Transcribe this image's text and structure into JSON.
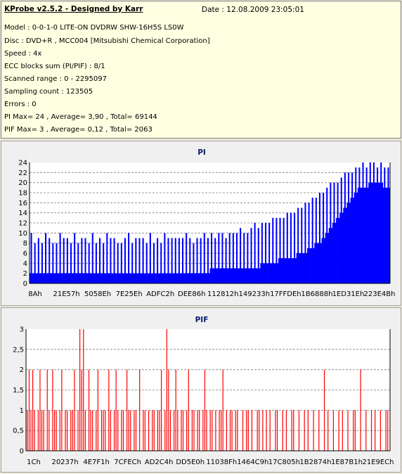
{
  "header": {
    "title": "KProbe v2.5.2 - Designed by Karr",
    "date": "Date : 12.08.2009 23:05:01",
    "lines": [
      "Model : 0-0-1-0 LITE-ON DVDRW SHW-16H5S  LS0W",
      "Disc : DVD+R , MCC004 [Mitsubishi Chemical Corporation]",
      "Speed : 4x",
      "ECC blocks sum (PI/PIF) : 8/1",
      "Scanned range : 0 - 2295097",
      "Sampling count : 123505",
      "Errors : 0",
      "PI Max= 24 , Average= 3,90 , Total= 69144",
      "PIF Max= 3 , Average= 0,12 , Total= 2063"
    ]
  },
  "colors": {
    "pi": "#0000ff",
    "pif": "#ff0000",
    "title": "#0a1a6e",
    "background": "#ffffe1"
  },
  "chart_data": [
    {
      "type": "bar",
      "title": "PI",
      "ylim": [
        0,
        24
      ],
      "yticks": [
        "0",
        "2",
        "4",
        "6",
        "8",
        "10",
        "12",
        "14",
        "16",
        "18",
        "20",
        "22",
        "24"
      ],
      "xticks": [
        "8Ah",
        "21E57h",
        "5058Eh",
        "7E25Eh",
        "ADFC2h",
        "DEE86h",
        "112812h",
        "149233h",
        "17FFDEh",
        "1B6888h",
        "1ED31Eh",
        "223E4Bh"
      ],
      "grid": true,
      "series": [
        {
          "color": "#0000ff",
          "base": [
            2,
            2,
            2,
            2,
            2,
            2,
            2,
            2,
            2,
            2,
            2,
            2,
            2,
            2,
            2,
            2,
            2,
            2,
            2,
            2,
            2,
            2,
            2,
            2,
            2,
            2,
            2,
            2,
            2,
            2,
            2,
            2,
            2,
            2,
            2,
            2,
            2,
            2,
            2,
            2,
            2,
            2,
            2,
            2,
            2,
            2,
            2,
            2,
            2,
            2,
            3,
            3,
            3,
            3,
            3,
            3,
            3,
            3,
            3,
            3,
            3,
            3,
            3,
            3,
            4,
            4,
            4,
            4,
            4,
            5,
            5,
            5,
            5,
            5,
            6,
            6,
            6,
            7,
            7,
            8,
            8,
            9,
            10,
            11,
            12,
            13,
            14,
            15,
            16,
            17,
            18,
            19,
            19,
            19,
            20,
            20,
            20,
            20,
            19,
            19
          ],
          "peaks": [
            10,
            8,
            9,
            8,
            10,
            9,
            8,
            8,
            10,
            9,
            9,
            8,
            10,
            8,
            9,
            9,
            8,
            10,
            8,
            9,
            8,
            10,
            9,
            9,
            8,
            8,
            9,
            10,
            8,
            9,
            9,
            9,
            8,
            10,
            8,
            9,
            8,
            10,
            9,
            9,
            9,
            9,
            9,
            10,
            9,
            8,
            9,
            9,
            10,
            9,
            10,
            9,
            10,
            10,
            9,
            10,
            10,
            10,
            11,
            10,
            10,
            11,
            12,
            11,
            12,
            12,
            12,
            13,
            13,
            13,
            13,
            14,
            14,
            14,
            15,
            15,
            16,
            16,
            17,
            17,
            18,
            18,
            19,
            20,
            20,
            20,
            21,
            22,
            22,
            22,
            23,
            23,
            24,
            23,
            24,
            24,
            23,
            24,
            23,
            23
          ]
        }
      ]
    },
    {
      "type": "bar",
      "title": "PIF",
      "ylim": [
        0,
        3
      ],
      "yticks": [
        "0",
        "0,5",
        "1",
        "1,5",
        "2",
        "2,5",
        "3"
      ],
      "xticks": [
        "1Ch",
        "20237h",
        "4E7F1h",
        "7CFECh",
        "AD2C4h",
        "DD5E0h",
        "11038Fh",
        "1464C9h",
        "17C805h",
        "1B2874h",
        "1E87B1h",
        "21E9ECh"
      ],
      "grid": true,
      "series": [
        {
          "color": "#ff0000",
          "values": [
            1,
            2,
            1,
            2,
            1,
            0,
            1,
            2,
            1,
            1,
            0,
            2,
            1,
            0,
            2,
            1,
            1,
            0,
            1,
            2,
            0,
            1,
            1,
            0,
            1,
            1,
            2,
            0,
            1,
            3,
            2,
            3,
            1,
            0,
            2,
            1,
            1,
            0,
            1,
            2,
            0,
            1,
            1,
            1,
            0,
            2,
            1,
            0,
            1,
            2,
            1,
            0,
            1,
            1,
            0,
            2,
            1,
            1,
            0,
            1,
            1,
            0,
            2,
            0,
            1,
            1,
            0,
            1,
            0,
            1,
            1,
            0,
            1,
            1,
            2,
            0,
            1,
            3,
            2,
            1,
            0,
            1,
            2,
            1,
            0,
            1,
            1,
            0,
            1,
            2,
            0,
            1,
            1,
            0,
            1,
            1,
            0,
            1,
            2,
            1,
            0,
            1,
            1,
            0,
            1,
            0,
            1,
            1,
            2,
            0,
            1,
            0,
            1,
            1,
            0,
            1,
            1,
            0,
            0,
            1,
            0,
            1,
            1,
            0,
            1,
            0,
            0,
            1,
            1,
            0,
            1,
            0,
            1,
            0,
            1,
            0,
            0,
            1,
            1,
            0,
            0,
            1,
            0,
            1,
            0,
            0,
            1,
            1,
            0,
            0,
            1,
            0,
            0,
            1,
            0,
            1,
            0,
            0,
            1,
            0,
            0,
            1,
            0,
            0,
            2,
            0,
            1,
            0,
            0,
            1,
            0,
            0,
            1,
            0,
            1,
            0,
            0,
            1,
            0,
            0,
            1,
            1,
            0,
            0,
            2,
            0,
            0,
            1,
            0,
            0,
            1,
            0,
            1,
            0,
            0,
            1,
            0,
            0,
            1,
            1,
            0
          ]
        }
      ]
    }
  ]
}
